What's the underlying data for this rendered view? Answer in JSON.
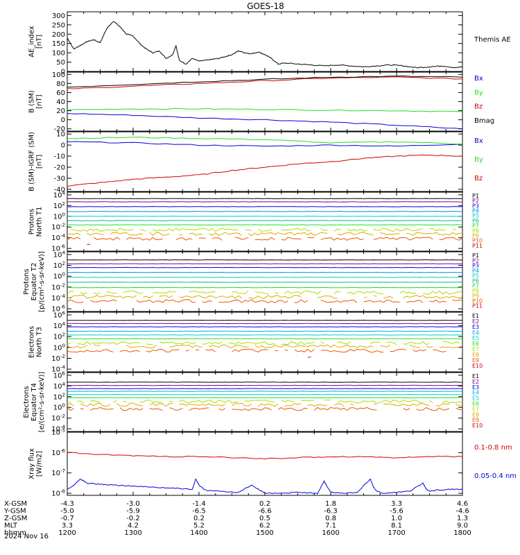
{
  "title": "GOES-18",
  "footer": {
    "rows": [
      {
        "label": "X-GSM",
        "values": [
          "-4.3",
          "-3.0",
          "-1.4",
          "0.2",
          "1.8",
          "3.3",
          "4.6"
        ]
      },
      {
        "label": "Y-GSM",
        "values": [
          "-5.0",
          "-5.9",
          "-6.5",
          "-6.6",
          "-6.3",
          "-5.6",
          "-4.6"
        ]
      },
      {
        "label": "Z-GSM",
        "values": [
          "-0.7",
          "-0.2",
          "0.2",
          "0.5",
          "0.8",
          "1.0",
          "1.3"
        ]
      },
      {
        "label": "MLT",
        "values": [
          "3.3",
          "4.2",
          "5.2",
          "6.2",
          "7.1",
          "8.1",
          "9.0"
        ]
      },
      {
        "label": "hhmm",
        "values": [
          "1200",
          "1300",
          "1400",
          "1500",
          "1600",
          "1700",
          "1800"
        ]
      }
    ],
    "date": "2024 Nov 16"
  },
  "colors": {
    "red": "#d40000",
    "green": "#22dd22",
    "blue": "#0000dd",
    "black": "#000000"
  },
  "chart_data": [
    {
      "type": "line",
      "ylabel": [
        "AE_index",
        "[nT]"
      ],
      "yticks": [
        "300",
        "250",
        "200",
        "150",
        "100",
        "50",
        "0"
      ],
      "ylim": [
        0,
        320
      ],
      "legend": [
        {
          "text": "Themis AE",
          "color": "#000000"
        }
      ],
      "series": [
        {
          "name": "Themis AE",
          "color": "#000000",
          "x": [
            12.0,
            12.1,
            12.2,
            12.3,
            12.4,
            12.5,
            12.6,
            12.7,
            12.8,
            12.9,
            13.0,
            13.1,
            13.2,
            13.3,
            13.4,
            13.5,
            13.6,
            13.65,
            13.7,
            13.8,
            13.9,
            14.0,
            14.1,
            14.2,
            14.3,
            14.4,
            14.5,
            14.6,
            14.7,
            14.8,
            14.9,
            15.0,
            15.1,
            15.2,
            15.3,
            15.5,
            15.7,
            15.9,
            16.1,
            16.3,
            16.5,
            16.7,
            16.9,
            17.1,
            17.3,
            17.5,
            17.7,
            17.9,
            18.0
          ],
          "y": [
            180,
            120,
            140,
            160,
            170,
            155,
            230,
            270,
            240,
            200,
            190,
            150,
            120,
            100,
            110,
            70,
            90,
            140,
            60,
            40,
            70,
            55,
            60,
            65,
            70,
            80,
            90,
            110,
            100,
            95,
            105,
            90,
            70,
            40,
            45,
            40,
            35,
            30,
            35,
            30,
            25,
            30,
            35,
            30,
            20,
            25,
            30,
            20,
            25
          ]
        }
      ]
    },
    {
      "type": "line",
      "ylabel": [
        "B (SM)",
        "[nT]"
      ],
      "yticks": [
        "100",
        "80",
        "60",
        "40",
        "20",
        "0",
        "-20"
      ],
      "ylim": [
        -25,
        105
      ],
      "legend": [
        {
          "text": "Bx",
          "color": "#0000dd"
        },
        {
          "text": "By",
          "color": "#22dd22"
        },
        {
          "text": "Bz",
          "color": "#d40000"
        },
        {
          "text": "Bmag",
          "color": "#000000"
        }
      ],
      "series": [
        {
          "name": "Bx",
          "color": "#0000dd",
          "x": [
            12.0,
            13.0,
            14.0,
            15.0,
            16.0,
            17.0,
            18.0
          ],
          "y": [
            14,
            10,
            4,
            0,
            -5,
            -12,
            -20
          ]
        },
        {
          "name": "By",
          "color": "#22dd22",
          "x": [
            12.0,
            13.0,
            14.0,
            15.0,
            16.0,
            17.0,
            18.0
          ],
          "y": [
            22,
            24,
            24,
            23,
            21,
            20,
            18
          ]
        },
        {
          "name": "Bz",
          "color": "#d40000",
          "x": [
            12.0,
            13.0,
            14.0,
            15.0,
            16.0,
            17.0,
            18.0
          ],
          "y": [
            68,
            74,
            80,
            86,
            92,
            94,
            90
          ]
        },
        {
          "name": "Bmag",
          "color": "#000000",
          "x": [
            12.0,
            13.0,
            14.0,
            15.0,
            16.0,
            17.0,
            18.0
          ],
          "y": [
            72,
            78,
            84,
            89,
            94,
            96,
            94
          ]
        }
      ]
    },
    {
      "type": "line",
      "ylabel": [
        "B (SM)-IGRF (SM)",
        "[nT]"
      ],
      "yticks": [
        "10",
        "0",
        "-10",
        "-20",
        "-30",
        "-40"
      ],
      "ylim": [
        -42,
        12
      ],
      "legend": [
        {
          "text": "Bx",
          "color": "#0000dd"
        },
        {
          "text": "By",
          "color": "#22dd22"
        },
        {
          "text": "Bz",
          "color": "#d40000"
        }
      ],
      "series": [
        {
          "name": "Bx",
          "color": "#0000dd",
          "x": [
            12.0,
            13.0,
            14.0,
            15.0,
            16.0,
            17.0,
            18.0
          ],
          "y": [
            3,
            2,
            0,
            -1,
            0,
            -1,
            1
          ]
        },
        {
          "name": "By",
          "color": "#22dd22",
          "x": [
            12.0,
            13.0,
            14.0,
            15.0,
            16.0,
            17.0,
            18.0
          ],
          "y": [
            6,
            7,
            6,
            5,
            2,
            3,
            1
          ]
        },
        {
          "name": "Bz",
          "color": "#d40000",
          "x": [
            12.0,
            12.5,
            13.0,
            13.5,
            14.0,
            14.5,
            15.0,
            15.5,
            16.0,
            16.5,
            17.0,
            17.5,
            18.0
          ],
          "y": [
            -37,
            -34,
            -31,
            -29,
            -27,
            -23,
            -20,
            -17,
            -15,
            -12,
            -10,
            -9,
            -10
          ]
        }
      ]
    },
    {
      "type": "line",
      "ylabel": [
        "Protons",
        "North T1"
      ],
      "yticks": [
        "10^4",
        "10^2",
        "10^0",
        "10^-2",
        "10^-4",
        "10^-6"
      ],
      "ylim": [
        -6.5,
        4.5
      ],
      "log": true,
      "legend": [
        {
          "text": "P1",
          "color": "#000000"
        },
        {
          "text": "P2",
          "color": "#7a0099"
        },
        {
          "text": "P3",
          "color": "#0000dd"
        },
        {
          "text": "P4",
          "color": "#0088ee"
        },
        {
          "text": "P5",
          "color": "#00cccc"
        },
        {
          "text": "P6",
          "color": "#00bb88"
        },
        {
          "text": "P7",
          "color": "#22dd22"
        },
        {
          "text": "P8",
          "color": "#aadd00"
        },
        {
          "text": "P9",
          "color": "#ddaa00"
        },
        {
          "text": "P10",
          "color": "#ee5500"
        },
        {
          "text": "P11",
          "color": "#d40000"
        }
      ],
      "levels": [
        3.3,
        2.7,
        1.8,
        0.9,
        0.0,
        -0.8,
        -1.6,
        -2.5,
        -3.3,
        -4.2,
        -5.0
      ]
    },
    {
      "type": "line",
      "ylabel": [
        "Protons",
        "Equator T2",
        "[p/(cm²-s-sr-keV)]"
      ],
      "yticks": [
        "10^4",
        "10^2",
        "10^0",
        "10^-2",
        "10^-4",
        "10^-6"
      ],
      "ylim": [
        -6.5,
        4.5
      ],
      "log": true,
      "legend": [
        {
          "text": "P1",
          "color": "#000000"
        },
        {
          "text": "P2",
          "color": "#7a0099"
        },
        {
          "text": "P3",
          "color": "#0000dd"
        },
        {
          "text": "P4",
          "color": "#0088ee"
        },
        {
          "text": "P5",
          "color": "#00cccc"
        },
        {
          "text": "P6",
          "color": "#00bb88"
        },
        {
          "text": "P7",
          "color": "#22dd22"
        },
        {
          "text": "P8",
          "color": "#aadd00"
        },
        {
          "text": "P9",
          "color": "#ddaa00"
        },
        {
          "text": "P10",
          "color": "#ee5500"
        },
        {
          "text": "P11",
          "color": "#d40000"
        }
      ],
      "levels": [
        3.0,
        2.3,
        1.6,
        0.7,
        -0.2,
        -1.1,
        -2.1,
        -3.0,
        -3.8,
        -4.6,
        -5.4
      ]
    },
    {
      "type": "line",
      "ylabel": [
        "Electrons",
        "North T3"
      ],
      "yticks": [
        "10^6",
        "10^4",
        "10^2",
        "10^0",
        "10^-2",
        "10^-4"
      ],
      "ylim": [
        -4.5,
        6.5
      ],
      "log": true,
      "legend": [
        {
          "text": "E1",
          "color": "#000000"
        },
        {
          "text": "E2",
          "color": "#7a0099"
        },
        {
          "text": "E3",
          "color": "#0000dd"
        },
        {
          "text": "E4",
          "color": "#00aaee"
        },
        {
          "text": "E5",
          "color": "#00cccc"
        },
        {
          "text": "E6",
          "color": "#22dd22"
        },
        {
          "text": "E7",
          "color": "#aadd00"
        },
        {
          "text": "E8",
          "color": "#ddaa00"
        },
        {
          "text": "E9",
          "color": "#ee5500"
        },
        {
          "text": "E10",
          "color": "#d40000"
        }
      ],
      "levels": [
        5.0,
        4.4,
        3.8,
        3.0,
        2.3,
        1.6,
        0.8,
        0.2,
        -0.6,
        -1.6
      ]
    },
    {
      "type": "line",
      "ylabel": [
        "Electrons",
        "Equator T4",
        "[e/(cm²-s-sr-keV)]"
      ],
      "yticks": [
        "10^6",
        "10^4",
        "10^2",
        "10^0",
        "10^-2",
        "10^-4"
      ],
      "ylim": [
        -4.5,
        6.5
      ],
      "log": true,
      "legend": [
        {
          "text": "E1",
          "color": "#000000"
        },
        {
          "text": "E2",
          "color": "#7a0099"
        },
        {
          "text": "E3",
          "color": "#0000dd"
        },
        {
          "text": "E4",
          "color": "#00aaee"
        },
        {
          "text": "E5",
          "color": "#00cccc"
        },
        {
          "text": "E6",
          "color": "#22dd22"
        },
        {
          "text": "E7",
          "color": "#aadd00"
        },
        {
          "text": "E8",
          "color": "#ddaa00"
        },
        {
          "text": "E9",
          "color": "#ee5500"
        },
        {
          "text": "E10",
          "color": "#d40000"
        }
      ],
      "levels": [
        4.7,
        4.1,
        3.5,
        3.0,
        2.4,
        1.8,
        1.1,
        0.5,
        -0.3,
        -1.8
      ]
    },
    {
      "type": "line",
      "ylabel": [
        "Xray flux",
        "[W/m2]"
      ],
      "yticks": [
        "10^-5",
        "10^-6",
        "10^-7",
        "10^-8"
      ],
      "ylim": [
        -8.1,
        -5.0
      ],
      "log": true,
      "legend": [
        {
          "text": "0.1-0.8 nm",
          "color": "#d40000"
        },
        {
          "text": "0.05-0.4 nm",
          "color": "#0000dd"
        }
      ],
      "series": [
        {
          "name": "0.1-0.8 nm",
          "color": "#d40000",
          "x": [
            12.0,
            12.5,
            13.0,
            13.5,
            14.0,
            14.5,
            15.0,
            15.5,
            16.0,
            16.5,
            17.0,
            17.5,
            18.0
          ],
          "y": [
            -6.0,
            -6.1,
            -6.15,
            -6.2,
            -6.2,
            -6.25,
            -6.3,
            -6.25,
            -6.2,
            -6.2,
            -6.25,
            -6.2,
            -6.2
          ]
        },
        {
          "name": "0.05-0.4 nm",
          "color": "#0000dd",
          "x": [
            12.0,
            12.1,
            12.2,
            12.3,
            12.5,
            12.7,
            13.0,
            13.3,
            13.6,
            13.9,
            13.95,
            14.0,
            14.1,
            14.3,
            14.6,
            14.8,
            15.0,
            15.3,
            15.5,
            15.8,
            15.9,
            15.95,
            16.0,
            16.2,
            16.4,
            16.6,
            16.65,
            16.7,
            16.8,
            17.0,
            17.2,
            17.4,
            17.45,
            17.5,
            17.6,
            17.8,
            18.0
          ],
          "y": [
            -7.8,
            -7.6,
            -7.3,
            -7.5,
            -7.55,
            -7.6,
            -7.65,
            -7.7,
            -7.75,
            -7.8,
            -7.3,
            -7.6,
            -7.85,
            -7.9,
            -7.95,
            -7.6,
            -8.0,
            -8.0,
            -7.95,
            -8.0,
            -7.4,
            -7.7,
            -7.95,
            -8.0,
            -7.95,
            -7.3,
            -7.7,
            -7.9,
            -8.0,
            -7.95,
            -7.9,
            -7.5,
            -7.8,
            -7.9,
            -7.85,
            -7.8,
            -7.8
          ]
        }
      ]
    }
  ]
}
